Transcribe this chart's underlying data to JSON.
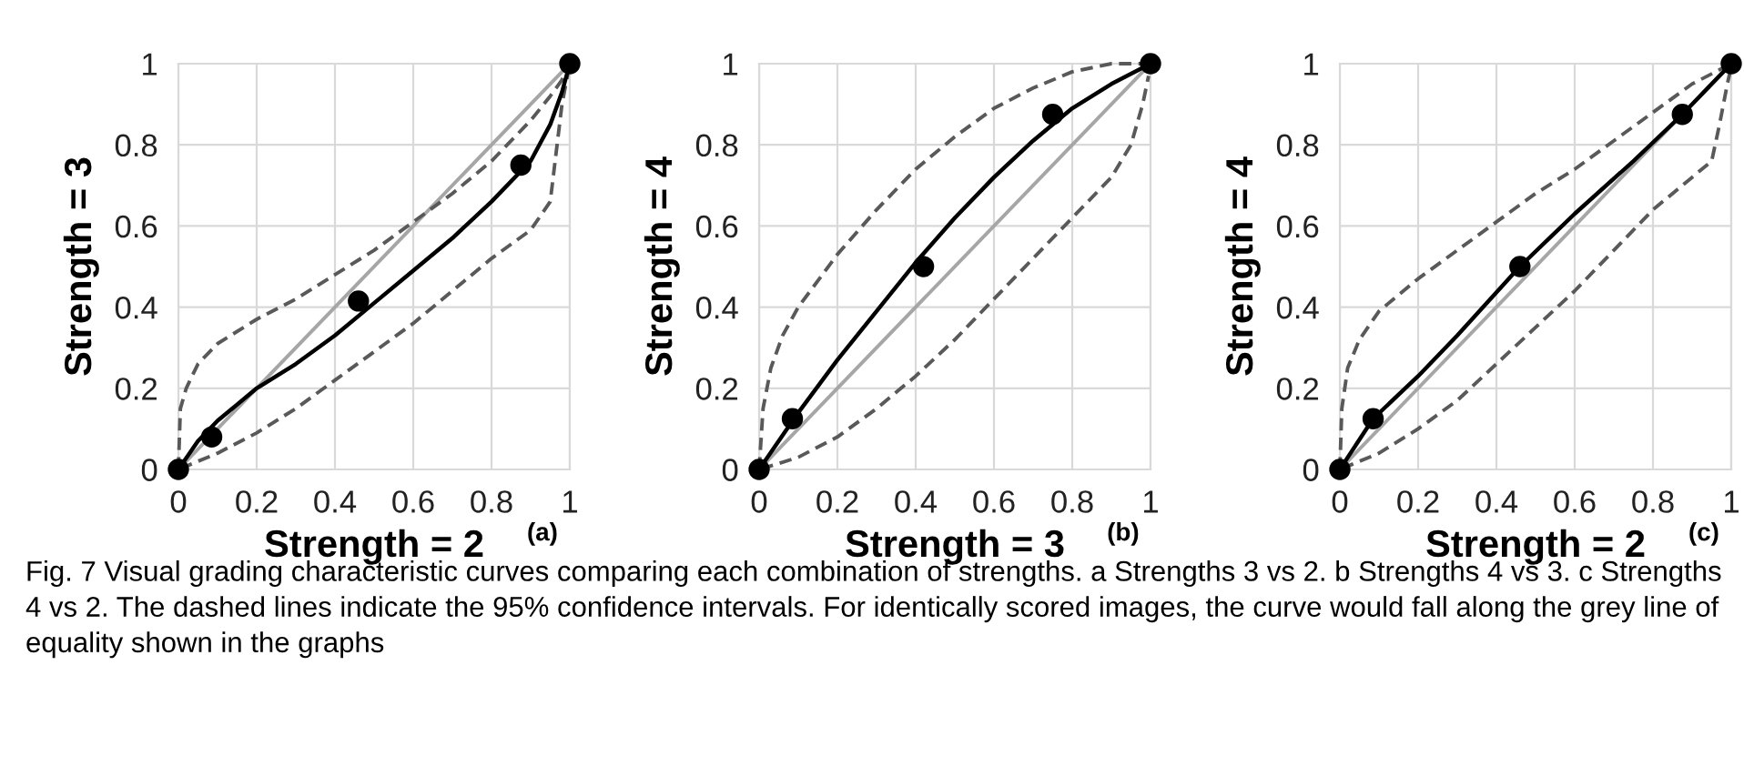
{
  "chart_data": [
    {
      "type": "line",
      "xlabel": "Strength = 2",
      "ylabel": "Strength = 3",
      "xlim": [
        0,
        1
      ],
      "ylim": [
        0,
        1
      ],
      "xticks": [
        0,
        0.2,
        0.4,
        0.6,
        0.8,
        1
      ],
      "yticks": [
        0,
        0.2,
        0.4,
        0.6,
        0.8,
        1
      ],
      "grid": true,
      "annotations": [
        "(a)",
        "Fig. 7 Visual grading characteristic curves comparing each combination of strengths. a Strengths 3 vs 2. b Strengths 4 vs 3. c Strengths 4 vs 2. The dashed lines indicate the 95% confidence intervals. For identically scored images, the curve would fall along the grey line of equality shown in the graphs"
      ],
      "series": [
        {
          "color": "#a6a6a6",
          "line_style": "solid",
          "x": [
            0,
            1
          ],
          "values": [
            0,
            1
          ]
        },
        {
          "color": "#595959",
          "line_style": "dashed",
          "x": [
            0,
            0.005,
            0.02,
            0.05,
            0.1,
            0.2,
            0.3,
            0.4,
            0.5,
            0.6,
            0.7,
            0.8,
            0.9,
            0.95,
            0.98,
            1
          ],
          "values": [
            0,
            0.15,
            0.2,
            0.26,
            0.31,
            0.37,
            0.42,
            0.48,
            0.54,
            0.61,
            0.68,
            0.76,
            0.86,
            0.92,
            0.96,
            1
          ]
        },
        {
          "color": "#595959",
          "line_style": "dashed",
          "x": [
            0.005,
            0.02,
            0.05,
            0.1,
            0.2,
            0.3,
            0.4,
            0.5,
            0.6,
            0.7,
            0.8,
            0.9,
            0.95,
            0.98,
            0.995
          ],
          "values": [
            0.002,
            0.008,
            0.02,
            0.04,
            0.09,
            0.15,
            0.22,
            0.29,
            0.36,
            0.44,
            0.52,
            0.59,
            0.66,
            0.9,
            0.975
          ]
        },
        {
          "color": "#000000",
          "line_style": "solid",
          "x": [
            0,
            0.05,
            0.1,
            0.2,
            0.3,
            0.4,
            0.5,
            0.6,
            0.7,
            0.8,
            0.9,
            0.95,
            0.98,
            1
          ],
          "values": [
            0,
            0.07,
            0.12,
            0.2,
            0.26,
            0.33,
            0.41,
            0.49,
            0.57,
            0.66,
            0.76,
            0.85,
            0.93,
            1
          ]
        },
        {
          "type": "scatter",
          "color": "#000000",
          "marker": "circle",
          "x": [
            0,
            0.085,
            0.46,
            0.875,
            1
          ],
          "values": [
            0,
            0.08,
            0.415,
            0.75,
            1
          ]
        }
      ]
    },
    {
      "type": "line",
      "xlabel": "Strength = 3",
      "ylabel": "Strength = 4",
      "xlim": [
        0,
        1
      ],
      "ylim": [
        0,
        1
      ],
      "xticks": [
        0,
        0.2,
        0.4,
        0.6,
        0.8,
        1
      ],
      "yticks": [
        0,
        0.2,
        0.4,
        0.6,
        0.8,
        1
      ],
      "grid": true,
      "annotations": [
        "(b)"
      ],
      "series": [
        {
          "color": "#a6a6a6",
          "line_style": "solid",
          "x": [
            0,
            1
          ],
          "values": [
            0,
            1
          ]
        },
        {
          "color": "#595959",
          "line_style": "dashed",
          "x": [
            0,
            0.01,
            0.03,
            0.06,
            0.1,
            0.2,
            0.3,
            0.4,
            0.5,
            0.6,
            0.7,
            0.8,
            0.9,
            1
          ],
          "values": [
            0,
            0.15,
            0.25,
            0.33,
            0.4,
            0.53,
            0.64,
            0.74,
            0.82,
            0.89,
            0.94,
            0.98,
            1,
            1
          ]
        },
        {
          "color": "#595959",
          "line_style": "dashed",
          "x": [
            0.005,
            0.1,
            0.2,
            0.3,
            0.4,
            0.5,
            0.6,
            0.7,
            0.8,
            0.9,
            0.95,
            0.98,
            0.995
          ],
          "values": [
            0.001,
            0.03,
            0.08,
            0.15,
            0.23,
            0.32,
            0.42,
            0.52,
            0.62,
            0.72,
            0.8,
            0.9,
            0.97
          ]
        },
        {
          "color": "#000000",
          "line_style": "solid",
          "x": [
            0,
            0.1,
            0.2,
            0.3,
            0.4,
            0.5,
            0.6,
            0.7,
            0.8,
            0.9,
            1
          ],
          "values": [
            0,
            0.14,
            0.27,
            0.39,
            0.51,
            0.62,
            0.72,
            0.81,
            0.89,
            0.95,
            1
          ]
        },
        {
          "type": "scatter",
          "color": "#000000",
          "marker": "circle",
          "x": [
            0,
            0.085,
            0.42,
            0.75,
            1
          ],
          "values": [
            0,
            0.125,
            0.5,
            0.875,
            1
          ]
        }
      ]
    },
    {
      "type": "line",
      "xlabel": "Strength = 2",
      "ylabel": "Strength = 4",
      "xlim": [
        0,
        1
      ],
      "ylim": [
        0,
        1
      ],
      "xticks": [
        0,
        0.2,
        0.4,
        0.6,
        0.8,
        1
      ],
      "yticks": [
        0,
        0.2,
        0.4,
        0.6,
        0.8,
        1
      ],
      "grid": true,
      "annotations": [
        "(c)"
      ],
      "series": [
        {
          "color": "#a6a6a6",
          "line_style": "solid",
          "x": [
            0,
            1
          ],
          "values": [
            0,
            1
          ]
        },
        {
          "color": "#595959",
          "line_style": "dashed",
          "x": [
            0,
            0.005,
            0.02,
            0.05,
            0.1,
            0.2,
            0.3,
            0.4,
            0.5,
            0.6,
            0.7,
            0.8,
            0.9,
            1
          ],
          "values": [
            0,
            0.15,
            0.25,
            0.32,
            0.39,
            0.47,
            0.54,
            0.61,
            0.68,
            0.74,
            0.81,
            0.88,
            0.95,
            1
          ]
        },
        {
          "color": "#595959",
          "line_style": "dashed",
          "x": [
            0.005,
            0.1,
            0.2,
            0.3,
            0.4,
            0.5,
            0.6,
            0.7,
            0.8,
            0.9,
            0.95,
            0.97,
            0.99,
            0.997
          ],
          "values": [
            0.002,
            0.04,
            0.1,
            0.17,
            0.26,
            0.35,
            0.44,
            0.54,
            0.64,
            0.72,
            0.76,
            0.85,
            0.95,
            0.98
          ]
        },
        {
          "color": "#000000",
          "line_style": "solid",
          "x": [
            0,
            0.085,
            0.2,
            0.3,
            0.46,
            0.6,
            0.75,
            0.875,
            1
          ],
          "values": [
            0,
            0.125,
            0.23,
            0.33,
            0.5,
            0.63,
            0.76,
            0.875,
            1
          ]
        },
        {
          "type": "scatter",
          "color": "#000000",
          "marker": "circle",
          "x": [
            0,
            0.085,
            0.46,
            0.875,
            1
          ],
          "values": [
            0,
            0.125,
            0.5,
            0.875,
            1
          ]
        }
      ]
    }
  ]
}
